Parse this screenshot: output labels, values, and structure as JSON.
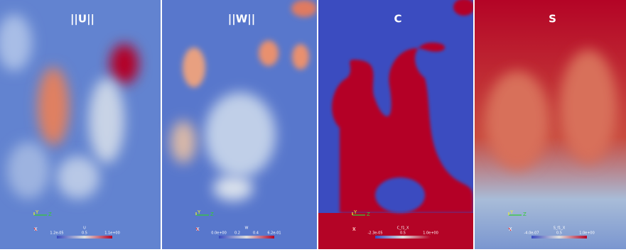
{
  "panels": [
    {
      "title": "||U||",
      "colorbar": {
        "title": "U",
        "labels": [
          "1.2e-05",
          "0.5",
          "1.1e+00"
        ]
      },
      "axes": {
        "y": "Y",
        "z": "Z",
        "x": "X"
      }
    },
    {
      "title": "||W||",
      "colorbar": {
        "title": "W",
        "labels": [
          "0.0e+00",
          "0.2",
          "0.4",
          "6.2e-01"
        ]
      },
      "axes": {
        "y": "Y",
        "z": "Z",
        "x": "X"
      }
    },
    {
      "title": "C",
      "colorbar": {
        "title": "C_f1_X",
        "labels": [
          "-2.3e-05",
          "0.5",
          "1.0e+00"
        ]
      },
      "axes": {
        "y": "Y",
        "z": "Z",
        "x": "X"
      }
    },
    {
      "title": "S",
      "colorbar": {
        "title": "S_f1_X",
        "labels": [
          "-4.0e-07",
          "0.5",
          "1.0e+00"
        ]
      },
      "axes": {
        "y": "Y",
        "z": "Z",
        "x": "X"
      }
    }
  ]
}
